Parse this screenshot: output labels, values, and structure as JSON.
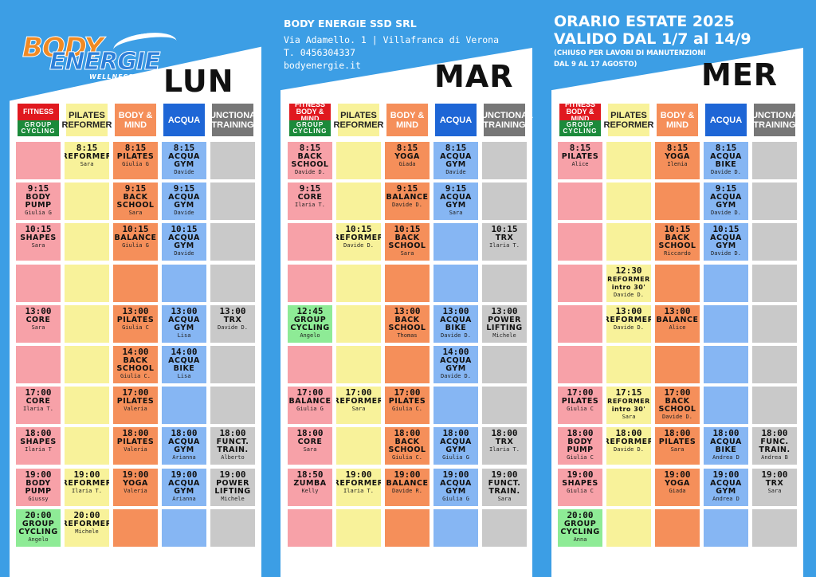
{
  "logo": {
    "word1": "BODY",
    "word2": "ENERGIE",
    "tagline": "WELLNESS CLUB"
  },
  "company": {
    "name": "BODY ENERGIE SSD SRL",
    "address": "Via Adamello. 1 |  Villafranca di Verona",
    "phone": "T. 0456304337",
    "web": "bodyenergie.it"
  },
  "season": {
    "title": "ORARIO ESTATE 2025",
    "valid": "VALIDO DAL 1/7 al 14/9",
    "note1": "(CHIUSO PER LAVORI DI MANUTENZIONI",
    "note2": "DAL 9 AL 17 AGOSTO)"
  },
  "colors": {
    "fitness": "#f7a1a8",
    "pilates": "#f8f29a",
    "body_mind": "#f58f5a",
    "acqua": "#86b6f3",
    "functional": "#c9c9c9",
    "cycling": "#8eeb96",
    "hdr_fitness_red": "#e0191f",
    "hdr_cycling_green": "#1b8a3a",
    "hdr_pilates": "#f8f29a",
    "hdr_body": "#f58f5a",
    "hdr_acqua": "#1e66d6",
    "hdr_functional": "#777777"
  },
  "days": [
    {
      "title": "LUN",
      "headers": [
        {
          "type": "split",
          "top": "FITNESS",
          "bottom": "GROUP CYCLING"
        },
        {
          "type": "pilates",
          "label": "PILATES REFORMER"
        },
        {
          "type": "body",
          "label": "BODY & MIND"
        },
        {
          "type": "acqua",
          "label": "ACQUA"
        },
        {
          "type": "functional",
          "label": "FUNCTIONAL TRAINING"
        }
      ],
      "rows": [
        [
          {},
          {
            "time": "8:15",
            "name": "REFORMER",
            "instr": "Sara"
          },
          {
            "time": "8:15",
            "name": "PILATES",
            "instr": "Giulia G"
          },
          {
            "time": "8:15",
            "name": "ACQUA GYM",
            "instr": "Davide"
          },
          {}
        ],
        [
          {
            "time": "9:15",
            "name": "BODY PUMP",
            "instr": "Giulia G"
          },
          {},
          {
            "time": "9:15",
            "name": "BACK SCHOOL",
            "instr": "Sara"
          },
          {
            "time": "9:15",
            "name": "ACQUA GYM",
            "instr": "Davide"
          },
          {}
        ],
        [
          {
            "time": "10:15",
            "name": "SHAPES",
            "instr": "Sara"
          },
          {},
          {
            "time": "10:15",
            "name": "BALANCE",
            "instr": "Giulia G"
          },
          {
            "time": "10:15",
            "name": "ACQUA GYM",
            "instr": "Davide"
          },
          {}
        ],
        [
          {},
          {},
          {},
          {},
          {}
        ],
        [
          {
            "time": "13:00",
            "name": "CORE",
            "instr": "Sara"
          },
          {},
          {
            "time": "13:00",
            "name": "PILATES",
            "instr": "Giulia C"
          },
          {
            "time": "13:00",
            "name": "ACQUA GYM",
            "instr": "Lisa"
          },
          {
            "time": "13:00",
            "name": "TRX",
            "instr": "Davide D."
          }
        ],
        [
          {},
          {},
          {
            "time": "14:00",
            "name": "BACK SCHOOL",
            "instr": "Giulia C."
          },
          {
            "time": "14:00",
            "name": "ACQUA BIKE",
            "instr": "Lisa"
          },
          {}
        ],
        [
          {
            "time": "17:00",
            "name": "CORE",
            "instr": "Ilaria T."
          },
          {},
          {
            "time": "17:00",
            "name": "PILATES",
            "instr": "Valeria"
          },
          {},
          {}
        ],
        [
          {
            "time": "18:00",
            "name": "SHAPES",
            "instr": "Ilaria T"
          },
          {},
          {
            "time": "18:00",
            "name": "PILATES",
            "instr": "Valeria"
          },
          {
            "time": "18:00",
            "name": "ACQUA GYM",
            "instr": "Arianna"
          },
          {
            "time": "18:00",
            "name": "FUNCT. TRAIN.",
            "instr": "Alberto"
          }
        ],
        [
          {
            "time": "19:00",
            "name": "BODY PUMP",
            "instr": "Giussy"
          },
          {
            "time": "19:00",
            "name": "REFORMER",
            "instr": "Ilaria T."
          },
          {
            "time": "19:00",
            "name": "YOGA",
            "instr": "Valeria"
          },
          {
            "time": "19:00",
            "name": "ACQUA GYM",
            "instr": "Arianna"
          },
          {
            "time": "19:00",
            "name": "POWER LIFTING",
            "instr": "Michele"
          }
        ],
        [
          {
            "time": "20:00",
            "name": "GROUP CYCLING",
            "instr": "Angelo",
            "cycling": true
          },
          {
            "time": "20:00",
            "name": "REFORMER",
            "instr": "Michele"
          },
          {},
          {},
          {}
        ]
      ]
    },
    {
      "title": "MAR",
      "headers": [
        {
          "type": "split",
          "top": "FITNESS BODY & MIND",
          "bottom": "GROUP CYCLING"
        },
        {
          "type": "pilates",
          "label": "PILATES REFORMER"
        },
        {
          "type": "body",
          "label": "BODY & MIND"
        },
        {
          "type": "acqua",
          "label": "ACQUA"
        },
        {
          "type": "functional",
          "label": "FUNCTIONAL TRAINING"
        }
      ],
      "rows": [
        [
          {
            "time": "8:15",
            "name": "BACK SCHOOL",
            "instr": "Davide D."
          },
          {},
          {
            "time": "8:15",
            "name": "YOGA",
            "instr": "Giada"
          },
          {
            "time": "8:15",
            "name": "ACQUA GYM",
            "instr": "Davide"
          },
          {}
        ],
        [
          {
            "time": "9:15",
            "name": "CORE",
            "instr": "Ilaria T."
          },
          {},
          {
            "time": "9:15",
            "name": "BALANCE",
            "instr": "Davide D."
          },
          {
            "time": "9:15",
            "name": "ACQUA GYM",
            "instr": "Sara"
          },
          {}
        ],
        [
          {},
          {
            "time": "10:15",
            "name": "REFORMER",
            "instr": "Davide D."
          },
          {
            "time": "10:15",
            "name": "BACK SCHOOL",
            "instr": "Sara"
          },
          {},
          {
            "time": "10:15",
            "name": "TRX",
            "instr": "Ilaria T."
          }
        ],
        [
          {},
          {},
          {},
          {},
          {}
        ],
        [
          {
            "time": "12:45",
            "name": "GROUP CYCLING",
            "instr": "Angelo",
            "cycling": true
          },
          {},
          {
            "time": "13:00",
            "name": "BACK SCHOOL",
            "instr": "Thomas"
          },
          {
            "time": "13:00",
            "name": "ACQUA BIKE",
            "instr": "Davide D."
          },
          {
            "time": "13:00",
            "name": "POWER LIFTING",
            "instr": "Michele"
          }
        ],
        [
          {},
          {},
          {},
          {
            "time": "14:00",
            "name": "ACQUA GYM",
            "instr": "Davide D."
          },
          {}
        ],
        [
          {
            "time": "17:00",
            "name": "BALANCE",
            "instr": "Giulia G"
          },
          {
            "time": "17:00",
            "name": "REFORMER",
            "instr": "Sara"
          },
          {
            "time": "17:00",
            "name": "PILATES",
            "instr": "Giulia C."
          },
          {},
          {}
        ],
        [
          {
            "time": "18:00",
            "name": "CORE",
            "instr": "Sara"
          },
          {},
          {
            "time": "18:00",
            "name": "BACK SCHOOL",
            "instr": "Giulia C."
          },
          {
            "time": "18:00",
            "name": "ACQUA GYM",
            "instr": "Giulia G"
          },
          {
            "time": "18:00",
            "name": "TRX",
            "instr": "Ilaria T."
          }
        ],
        [
          {
            "time": "18:50",
            "name": "ZUMBA",
            "instr": "Kelly"
          },
          {
            "time": "19:00",
            "name": "REFORMER",
            "instr": "Ilaria T."
          },
          {
            "time": "19:00",
            "name": "BALANCE",
            "instr": "Davide R."
          },
          {
            "time": "19:00",
            "name": "ACQUA GYM",
            "instr": "Giulia G"
          },
          {
            "time": "19:00",
            "name": "FUNCT. TRAIN.",
            "instr": "Sara"
          }
        ],
        [
          {},
          {},
          {},
          {},
          {}
        ]
      ]
    },
    {
      "title": "MER",
      "headers": [
        {
          "type": "split",
          "top": "FITNESS BODY & MIND",
          "bottom": "GROUP CYCLING"
        },
        {
          "type": "pilates",
          "label": "PILATES REFORMER"
        },
        {
          "type": "body",
          "label": "BODY & MIND"
        },
        {
          "type": "acqua",
          "label": "ACQUA"
        },
        {
          "type": "functional",
          "label": "FUNCTIONAL TRAINING"
        }
      ],
      "rows": [
        [
          {
            "time": "8:15",
            "name": "PILATES",
            "instr": "Alice"
          },
          {},
          {
            "time": "8:15",
            "name": "YOGA",
            "instr": "Ilenia"
          },
          {
            "time": "8:15",
            "name": "ACQUA BIKE",
            "instr": "Davide D."
          },
          {}
        ],
        [
          {},
          {},
          {},
          {
            "time": "9:15",
            "name": "ACQUA GYM",
            "instr": "Davide D."
          },
          {}
        ],
        [
          {},
          {},
          {
            "time": "10:15",
            "name": "BACK SCHOOL",
            "instr": "Riccardo"
          },
          {
            "time": "10:15",
            "name": "ACQUA GYM",
            "instr": "Davide D."
          },
          {}
        ],
        [
          {},
          {
            "time": "12:30",
            "name": "REFORMER intro 30'",
            "instr": "Davide D.",
            "small": true
          },
          {},
          {},
          {}
        ],
        [
          {},
          {
            "time": "13:00",
            "name": "REFORMER",
            "instr": "Davide D."
          },
          {
            "time": "13:00",
            "name": "BALANCE",
            "instr": "Alice"
          },
          {},
          {}
        ],
        [
          {},
          {},
          {},
          {},
          {}
        ],
        [
          {
            "time": "17:00",
            "name": "PILATES",
            "instr": "Giulia C"
          },
          {
            "time": "17:15",
            "name": "REFORMER intro 30'",
            "instr": "Sara",
            "small": true
          },
          {
            "time": "17:00",
            "name": "BACK SCHOOL",
            "instr": "Davide D."
          },
          {},
          {}
        ],
        [
          {
            "time": "18:00",
            "name": "BODY PUMP",
            "instr": "Giulia C"
          },
          {
            "time": "18:00",
            "name": "REFORMER",
            "instr": "Davide D."
          },
          {
            "time": "18:00",
            "name": "PILATES",
            "instr": "Sara"
          },
          {
            "time": "18:00",
            "name": "ACQUA BIKE",
            "instr": "Andrea D"
          },
          {
            "time": "18:00",
            "name": "FUNC. TRAIN.",
            "instr": "Andrea B"
          }
        ],
        [
          {
            "time": "19:00",
            "name": "SHAPES",
            "instr": "Giulia C"
          },
          {},
          {
            "time": "19:00",
            "name": "YOGA",
            "instr": "Giada"
          },
          {
            "time": "19:00",
            "name": "ACQUA GYM",
            "instr": "Andrea D"
          },
          {
            "time": "19:00",
            "name": "TRX",
            "instr": "Sara"
          }
        ],
        [
          {
            "time": "20:00",
            "name": "GROUP CYCLING",
            "instr": "Anna",
            "cycling": true
          },
          {},
          {},
          {},
          {}
        ]
      ]
    }
  ]
}
